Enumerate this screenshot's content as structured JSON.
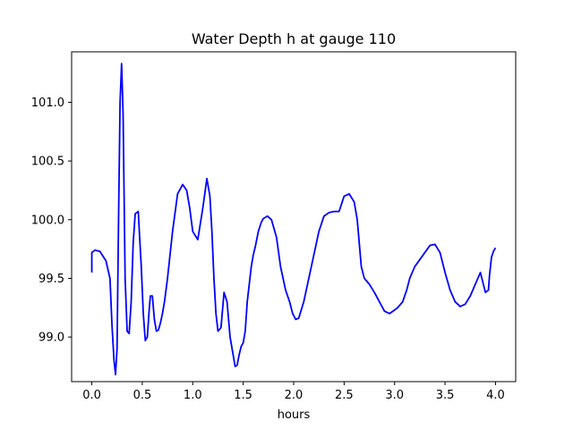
{
  "chart_data": {
    "type": "line",
    "title": "Water Depth h at gauge 110",
    "xlabel": "hours",
    "ylabel": "",
    "xlim": [
      -0.2,
      4.2
    ],
    "ylim": [
      98.62,
      101.43
    ],
    "xticks": [
      0.0,
      0.5,
      1.0,
      1.5,
      2.0,
      2.5,
      3.0,
      3.5,
      4.0
    ],
    "xtick_labels": [
      "0.0",
      "0.5",
      "1.0",
      "1.5",
      "2.0",
      "2.5",
      "3.0",
      "3.5",
      "4.0"
    ],
    "yticks": [
      99.0,
      99.5,
      100.0,
      100.5,
      101.0
    ],
    "ytick_labels": [
      "99.0",
      "99.5",
      "100.0",
      "100.5",
      "101.0"
    ],
    "grid": false,
    "line_color": "#0000ff",
    "series": [
      {
        "x": [
          0.0,
          0.0,
          0.03,
          0.08,
          0.14,
          0.18,
          0.2,
          0.22,
          0.235,
          0.25,
          0.265,
          0.28,
          0.295,
          0.31,
          0.32,
          0.33,
          0.35,
          0.37,
          0.39,
          0.41,
          0.43,
          0.46,
          0.49,
          0.51,
          0.53,
          0.55,
          0.57,
          0.58,
          0.6,
          0.62,
          0.64,
          0.66,
          0.68,
          0.7,
          0.72,
          0.75,
          0.8,
          0.85,
          0.9,
          0.94,
          0.97,
          1.0,
          1.05,
          1.1,
          1.14,
          1.17,
          1.19,
          1.21,
          1.23,
          1.25,
          1.28,
          1.31,
          1.34,
          1.37,
          1.4,
          1.42,
          1.44,
          1.46,
          1.48,
          1.5,
          1.52,
          1.54,
          1.56,
          1.58,
          1.6,
          1.62,
          1.65,
          1.68,
          1.7,
          1.74,
          1.78,
          1.83,
          1.87,
          1.92,
          1.96,
          1.99,
          2.02,
          2.05,
          2.1,
          2.15,
          2.2,
          2.25,
          2.3,
          2.35,
          2.4,
          2.45,
          2.5,
          2.55,
          2.6,
          2.63,
          2.65,
          2.67,
          2.7,
          2.75,
          2.8,
          2.85,
          2.9,
          2.95,
          3.0,
          3.03,
          3.05,
          3.08,
          3.12,
          3.15,
          3.2,
          3.25,
          3.3,
          3.35,
          3.4,
          3.45,
          3.5,
          3.55,
          3.6,
          3.65,
          3.7,
          3.75,
          3.8,
          3.85,
          3.9,
          3.93,
          3.94,
          3.95,
          3.96,
          3.98,
          4.0
        ],
        "y": [
          99.55,
          99.72,
          99.74,
          99.73,
          99.65,
          99.5,
          99.1,
          98.8,
          98.68,
          98.9,
          100.0,
          101.0,
          101.33,
          100.9,
          100.2,
          99.5,
          99.05,
          99.03,
          99.3,
          99.8,
          100.05,
          100.07,
          99.6,
          99.2,
          98.97,
          99.0,
          99.25,
          99.35,
          99.35,
          99.15,
          99.05,
          99.06,
          99.12,
          99.2,
          99.3,
          99.5,
          99.9,
          100.22,
          100.3,
          100.25,
          100.1,
          99.9,
          99.83,
          100.1,
          100.35,
          100.2,
          99.9,
          99.5,
          99.2,
          99.05,
          99.08,
          99.38,
          99.3,
          99.0,
          98.85,
          98.75,
          98.76,
          98.85,
          98.92,
          98.95,
          99.05,
          99.3,
          99.45,
          99.6,
          99.7,
          99.77,
          99.9,
          99.98,
          100.01,
          100.03,
          100.0,
          99.85,
          99.6,
          99.4,
          99.3,
          99.2,
          99.15,
          99.16,
          99.3,
          99.5,
          99.7,
          99.9,
          100.03,
          100.06,
          100.07,
          100.07,
          100.2,
          100.22,
          100.15,
          100.0,
          99.8,
          99.6,
          99.5,
          99.45,
          99.38,
          99.3,
          99.22,
          99.2,
          99.23,
          99.25,
          99.27,
          99.3,
          99.4,
          99.5,
          99.6,
          99.66,
          99.72,
          99.78,
          99.79,
          99.72,
          99.55,
          99.4,
          99.3,
          99.26,
          99.28,
          99.35,
          99.45,
          99.55,
          99.38,
          99.4,
          99.52,
          99.6,
          99.68,
          99.73,
          99.76
        ]
      }
    ]
  }
}
